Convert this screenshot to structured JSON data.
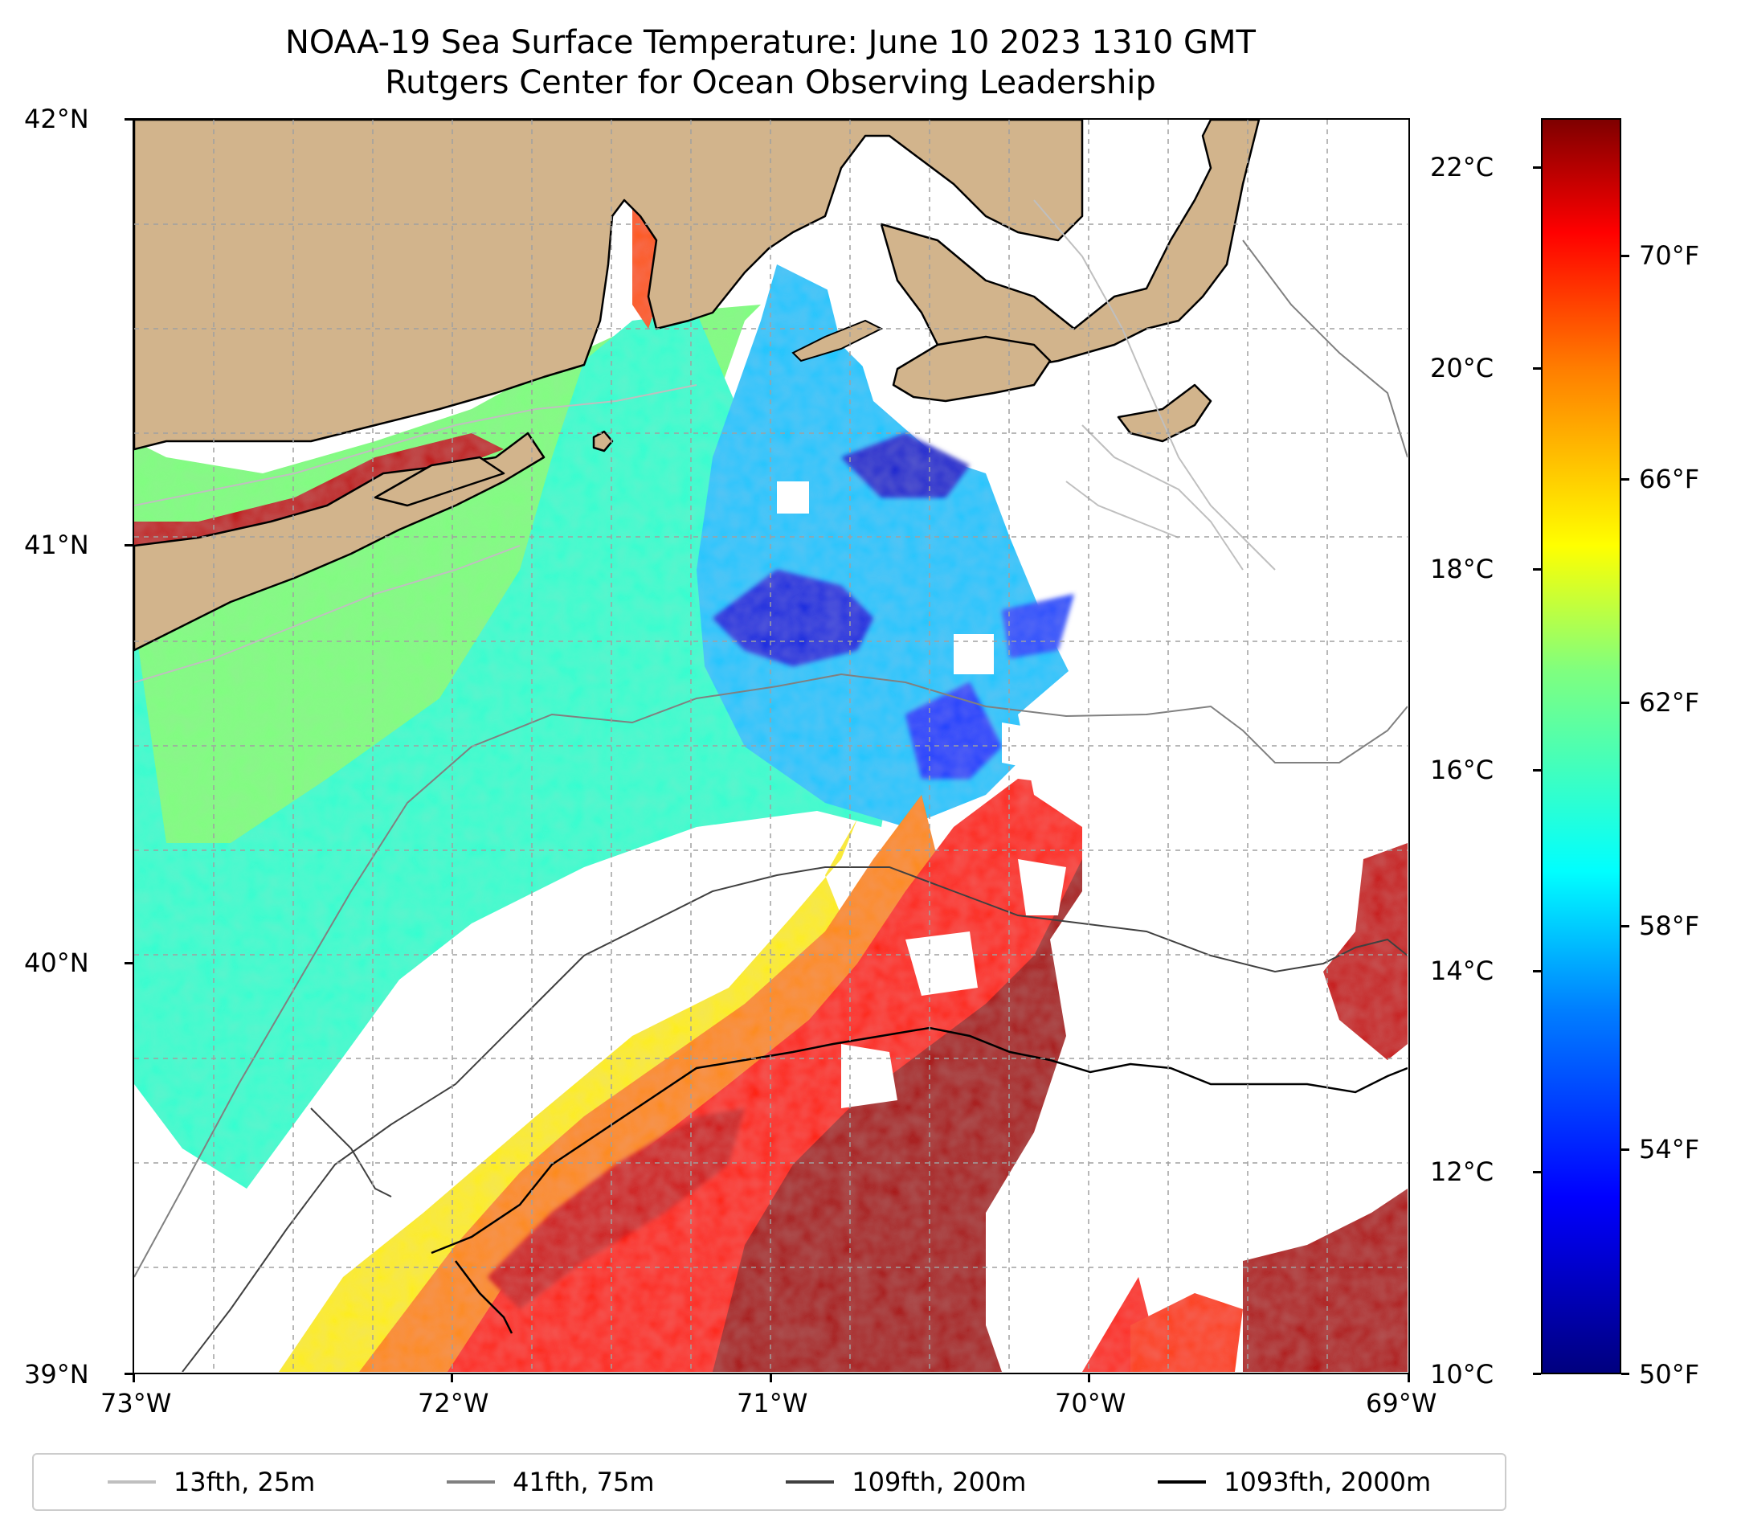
{
  "title": "NOAA-19 Sea Surface Temperature: June 10 2023 1310 GMT",
  "subtitle": "Rutgers Center for Ocean Observing Leadership",
  "map": {
    "extent": {
      "lon_min": -73,
      "lon_max": -69,
      "lat_min": 39,
      "lat_max": 42
    },
    "lon_ticks": [
      "73°W",
      "72°W",
      "71°W",
      "70°W",
      "69°W"
    ],
    "lat_ticks": [
      "42°N",
      "41°N",
      "40°N",
      "39°N"
    ],
    "gridlines": true,
    "land_color": "#d2b48c",
    "regions": [
      "Long Island",
      "Block Island",
      "Narragansett Bay",
      "Martha's Vineyard",
      "Nantucket",
      "Cape Cod"
    ]
  },
  "colorbar": {
    "colormap": "jet",
    "celsius_ticks": [
      "22°C",
      "20°C",
      "18°C",
      "16°C",
      "14°C",
      "12°C",
      "10°C"
    ],
    "fahrenheit_ticks": [
      "70°F",
      "66°F",
      "62°F",
      "58°F",
      "54°F",
      "50°F"
    ],
    "range_c": [
      10,
      22.5
    ]
  },
  "legend": {
    "entries": [
      {
        "label": "13fth, 25m",
        "color": "#bfbfbf"
      },
      {
        "label": "41fth, 75m",
        "color": "#808080"
      },
      {
        "label": "109fth, 200m",
        "color": "#404040"
      },
      {
        "label": "1093fth, 2000m",
        "color": "#000000"
      }
    ]
  }
}
